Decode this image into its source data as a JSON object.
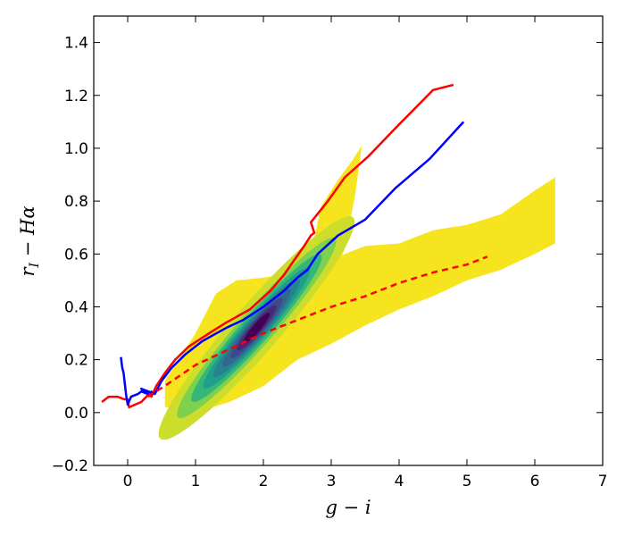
{
  "chart_data": {
    "type": "scatter",
    "title": "",
    "xlabel": "g − i",
    "ylabel": "r_I − Hα",
    "ylabel_parts": {
      "main": "r",
      "sub": "I",
      "rest": " − Hα"
    },
    "xlim": [
      -0.5,
      7
    ],
    "ylim": [
      -0.2,
      1.5
    ],
    "xticks": [
      0,
      1,
      2,
      3,
      4,
      5,
      6,
      7
    ],
    "xtick_labels": [
      "0",
      "1",
      "2",
      "3",
      "4",
      "5",
      "6",
      "7"
    ],
    "yticks": [
      -0.2,
      0.0,
      0.2,
      0.4,
      0.6,
      0.8,
      1.0,
      1.2,
      1.4
    ],
    "ytick_labels": [
      "−0.2",
      "0.0",
      "0.2",
      "0.4",
      "0.6",
      "0.8",
      "1.0",
      "1.2",
      "1.4"
    ],
    "grid": false,
    "legend": false,
    "density": {
      "colors": [
        "#f6e51e",
        "#ccdd2c",
        "#7ed14e",
        "#35b779",
        "#1f9e89",
        "#26828e",
        "#31688e",
        "#3e4989",
        "#482878",
        "#440154"
      ],
      "main_band": {
        "centerline": [
          [
            0.55,
            0.07
          ],
          [
            1.0,
            0.18
          ],
          [
            1.5,
            0.27
          ],
          [
            2.0,
            0.33
          ],
          [
            2.5,
            0.39
          ],
          [
            3.0,
            0.43
          ],
          [
            3.5,
            0.47
          ],
          [
            4.0,
            0.5
          ],
          [
            4.5,
            0.53
          ],
          [
            5.0,
            0.57
          ],
          [
            5.5,
            0.6
          ],
          [
            6.0,
            0.64
          ],
          [
            6.3,
            0.68
          ]
        ],
        "upper": [
          [
            0.55,
            0.12
          ],
          [
            1.0,
            0.3
          ],
          [
            1.3,
            0.45
          ],
          [
            1.6,
            0.5
          ],
          [
            2.0,
            0.51
          ],
          [
            2.5,
            0.53
          ],
          [
            3.0,
            0.58
          ],
          [
            3.5,
            0.63
          ],
          [
            4.0,
            0.64
          ],
          [
            4.5,
            0.69
          ],
          [
            5.0,
            0.71
          ],
          [
            5.5,
            0.75
          ],
          [
            6.0,
            0.84
          ],
          [
            6.3,
            0.89
          ]
        ],
        "lower": [
          [
            0.55,
            0.03
          ],
          [
            1.0,
            0.0
          ],
          [
            1.5,
            0.04
          ],
          [
            2.0,
            0.1
          ],
          [
            2.5,
            0.2
          ],
          [
            3.0,
            0.26
          ],
          [
            3.5,
            0.33
          ],
          [
            4.0,
            0.39
          ],
          [
            4.5,
            0.44
          ],
          [
            5.0,
            0.5
          ],
          [
            5.5,
            0.54
          ],
          [
            6.0,
            0.6
          ],
          [
            6.3,
            0.64
          ]
        ]
      },
      "giant_branch": [
        [
          2.5,
          0.42
        ],
        [
          2.7,
          0.6
        ],
        [
          2.85,
          0.78
        ],
        [
          3.1,
          0.88
        ],
        [
          3.3,
          0.95
        ],
        [
          3.45,
          1.01
        ],
        [
          3.35,
          0.82
        ],
        [
          3.2,
          0.62
        ],
        [
          3.0,
          0.5
        ],
        [
          2.75,
          0.42
        ]
      ],
      "low_tail": [
        [
          0.55,
          0.05
        ],
        [
          0.75,
          0.08
        ],
        [
          0.75,
          0.02
        ],
        [
          0.55,
          0.02
        ]
      ],
      "core": {
        "center": [
          1.9,
          0.32
        ],
        "axis_direction": [
          1.0,
          0.28
        ],
        "contours": [
          {
            "level": 1,
            "a": 1.5,
            "b": 0.13
          },
          {
            "level": 2,
            "a": 1.22,
            "b": 0.095
          },
          {
            "level": 3,
            "a": 1.0,
            "b": 0.078
          },
          {
            "level": 4,
            "a": 0.82,
            "b": 0.064
          },
          {
            "level": 5,
            "a": 0.66,
            "b": 0.054
          },
          {
            "level": 6,
            "a": 0.52,
            "b": 0.045
          },
          {
            "level": 7,
            "a": 0.4,
            "b": 0.037
          },
          {
            "level": 8,
            "a": 0.3,
            "b": 0.03
          },
          {
            "level": 9,
            "a": 0.2,
            "b": 0.022
          }
        ]
      }
    },
    "series": [
      {
        "color": "#ff0000",
        "style": "solid",
        "x": [
          -0.38,
          -0.28,
          -0.2,
          -0.15,
          -0.05,
          0.0,
          0.02,
          0.2,
          0.35,
          0.35,
          0.42,
          0.55,
          0.7,
          0.9,
          1.2,
          1.45,
          1.8,
          2.1,
          2.3,
          2.6,
          2.7,
          2.75,
          2.7,
          2.95,
          3.2,
          3.55,
          4.0,
          4.5,
          4.8
        ],
        "y": [
          0.04,
          0.06,
          0.06,
          0.06,
          0.05,
          0.05,
          0.02,
          0.04,
          0.08,
          0.06,
          0.1,
          0.15,
          0.2,
          0.25,
          0.3,
          0.34,
          0.39,
          0.46,
          0.52,
          0.63,
          0.67,
          0.68,
          0.72,
          0.8,
          0.89,
          0.97,
          1.09,
          1.22,
          1.24
        ]
      },
      {
        "color": "#0000ff",
        "style": "solid",
        "x": [
          -0.1,
          -0.08,
          -0.06,
          -0.02,
          0.0,
          0.05,
          0.15,
          0.2,
          0.3,
          0.2,
          0.4,
          0.5,
          0.65,
          0.85,
          1.1,
          1.45,
          1.7,
          2.0,
          2.3,
          2.5,
          2.65,
          2.8,
          3.1,
          3.5,
          3.95,
          4.45,
          4.95
        ],
        "y": [
          0.21,
          0.17,
          0.15,
          0.06,
          0.03,
          0.06,
          0.07,
          0.08,
          0.07,
          0.09,
          0.07,
          0.12,
          0.17,
          0.22,
          0.27,
          0.32,
          0.35,
          0.4,
          0.46,
          0.51,
          0.54,
          0.6,
          0.67,
          0.73,
          0.85,
          0.96,
          1.1
        ]
      },
      {
        "color": "#ff0000",
        "style": "dashed",
        "x": [
          0.3,
          0.6,
          1.0,
          1.5,
          2.0,
          2.5,
          3.0,
          3.5,
          4.0,
          4.5,
          5.0,
          5.3
        ],
        "y": [
          0.06,
          0.11,
          0.18,
          0.24,
          0.3,
          0.35,
          0.4,
          0.44,
          0.49,
          0.53,
          0.56,
          0.59
        ]
      }
    ]
  }
}
